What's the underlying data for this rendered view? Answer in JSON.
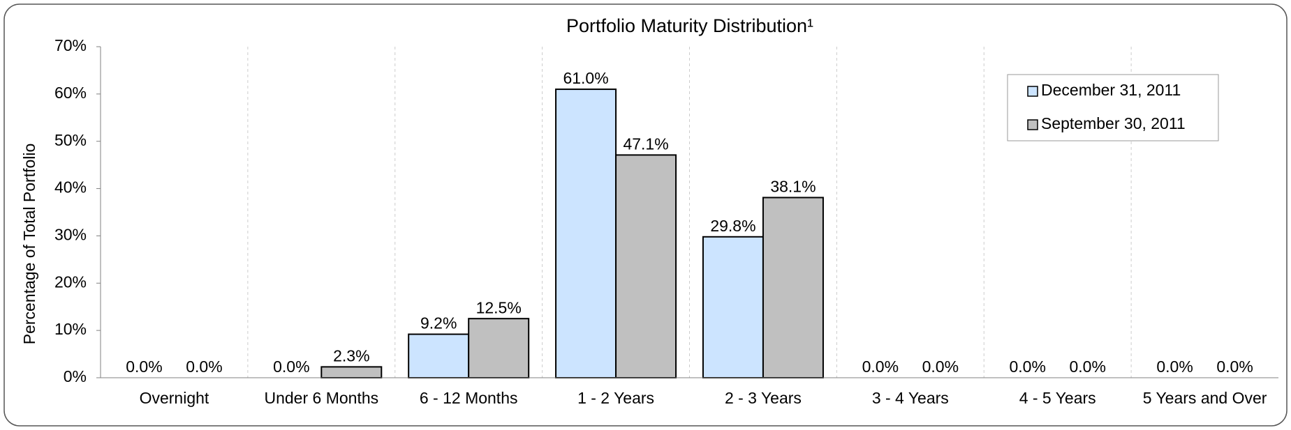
{
  "chart_data": {
    "type": "bar",
    "title": "Portfolio Maturity Distribution¹",
    "y_label": "Percentage of Total Portfolio",
    "categories": [
      "Overnight",
      "Under 6 Months",
      "6 - 12 Months",
      "1 - 2 Years",
      "2 - 3 Years",
      "3 - 4 Years",
      "4 - 5 Years",
      "5 Years and Over"
    ],
    "series": [
      {
        "name": "December 31, 2011",
        "color": "#cce4ff",
        "values": [
          0,
          0,
          9.2,
          61.0,
          29.8,
          0,
          0,
          0
        ],
        "value_labels": [
          "0.0%",
          "0.0%",
          "9.2%",
          "61.0%",
          "29.8%",
          "0.0%",
          "0.0%",
          "0.0%"
        ]
      },
      {
        "name": "September 30, 2011",
        "color": "#c0c0c0",
        "values": [
          0,
          2.3,
          12.5,
          47.1,
          38.1,
          0,
          0,
          0
        ],
        "value_labels": [
          "0.0%",
          "2.3%",
          "12.5%",
          "47.1%",
          "38.1%",
          "0.0%",
          "0.0%",
          "0.0%"
        ]
      }
    ],
    "ylim": [
      0,
      70
    ],
    "yticks": [
      {
        "value": 0,
        "label": "0%"
      },
      {
        "value": 10,
        "label": "10%"
      },
      {
        "value": 20,
        "label": "20%"
      },
      {
        "value": 30,
        "label": "30%"
      },
      {
        "value": 40,
        "label": "40%"
      },
      {
        "value": 50,
        "label": "50%"
      },
      {
        "value": 60,
        "label": "60%"
      },
      {
        "value": 70,
        "label": "70%"
      }
    ],
    "legend": "top-right"
  }
}
